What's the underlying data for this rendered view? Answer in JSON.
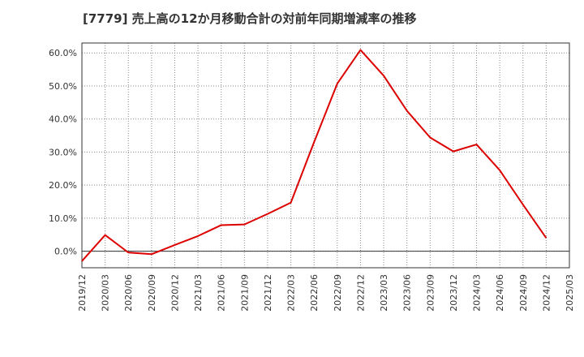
{
  "chart_data": {
    "type": "line",
    "title": "[7779]  売上高の12か月移動合計の対前年同期増減率の推移",
    "xlabel": "",
    "ylabel": "",
    "categories": [
      "2019/12",
      "2020/03",
      "2020/06",
      "2020/09",
      "2020/12",
      "2021/03",
      "2021/06",
      "2021/09",
      "2021/12",
      "2022/03",
      "2022/06",
      "2022/09",
      "2022/12",
      "2023/03",
      "2023/06",
      "2023/09",
      "2023/12",
      "2024/03",
      "2024/06",
      "2024/09",
      "2024/12",
      "2025/03"
    ],
    "series": [
      {
        "name": "対前年同期増減率",
        "color": "#dd0000",
        "values": [
          -3.0,
          4.9,
          -0.4,
          -0.9,
          1.9,
          4.6,
          7.9,
          8.1,
          11.3,
          14.7,
          33.0,
          50.7,
          60.9,
          53.1,
          42.5,
          34.4,
          30.2,
          32.3,
          24.5,
          14.1,
          4.0,
          null
        ]
      }
    ],
    "ylim": [
      -5,
      63
    ],
    "yticks": [
      0,
      10,
      20,
      30,
      40,
      50,
      60
    ],
    "ytick_labels": [
      "0.0%",
      "10.0%",
      "20.0%",
      "30.0%",
      "40.0%",
      "50.0%",
      "60.0%"
    ],
    "grid": true,
    "legend": "none"
  }
}
